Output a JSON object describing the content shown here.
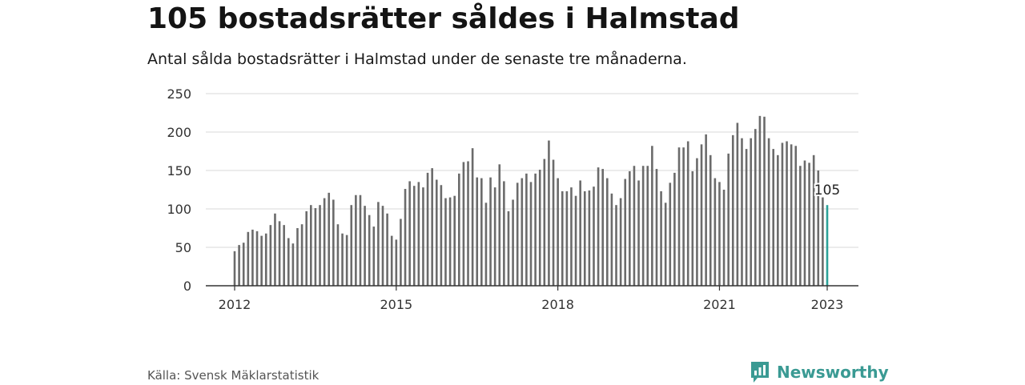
{
  "header": {
    "title": "105 bostadsrätter såldes i Halmstad",
    "subtitle": "Antal sålda bostadsrätter i Halmstad under de senaste tre månaderna."
  },
  "footer": {
    "source": "Källa: Svensk Mäklarstatistik",
    "brand": "Newsworthy"
  },
  "colors": {
    "bar": "#6b6b6b",
    "highlight": "#2aa198",
    "grid": "#d9d9d9",
    "axis": "#333333",
    "brand": "#3a9a93"
  },
  "chart_data": {
    "type": "bar",
    "title": "105 bostadsrätter såldes i Halmstad",
    "xlabel": "",
    "ylabel": "",
    "ylim": [
      0,
      250
    ],
    "yticks": [
      0,
      50,
      100,
      150,
      200,
      250
    ],
    "xticks": [
      "2012",
      "2015",
      "2018",
      "2021",
      "2023"
    ],
    "grid": true,
    "x_start": "2012-01",
    "x_end": "2023-01",
    "highlight_label": "105",
    "values": [
      45,
      53,
      56,
      70,
      73,
      71,
      65,
      68,
      79,
      94,
      84,
      79,
      62,
      55,
      75,
      80,
      97,
      105,
      101,
      105,
      114,
      121,
      112,
      80,
      68,
      66,
      105,
      118,
      118,
      104,
      92,
      77,
      109,
      104,
      94,
      65,
      60,
      87,
      126,
      136,
      130,
      135,
      128,
      147,
      153,
      138,
      131,
      114,
      115,
      117,
      146,
      161,
      162,
      179,
      141,
      140,
      108,
      141,
      128,
      158,
      136,
      97,
      112,
      134,
      140,
      146,
      135,
      146,
      151,
      165,
      189,
      164,
      140,
      123,
      123,
      128,
      117,
      137,
      123,
      124,
      129,
      154,
      152,
      140,
      120,
      105,
      114,
      139,
      149,
      156,
      137,
      156,
      156,
      182,
      152,
      123,
      108,
      134,
      147,
      180,
      180,
      188,
      149,
      166,
      184,
      197,
      170,
      140,
      135,
      125,
      172,
      196,
      212,
      192,
      178,
      192,
      204,
      221,
      220,
      192,
      178,
      170,
      186,
      188,
      184,
      182,
      156,
      163,
      160,
      170,
      150,
      115,
      105
    ]
  }
}
